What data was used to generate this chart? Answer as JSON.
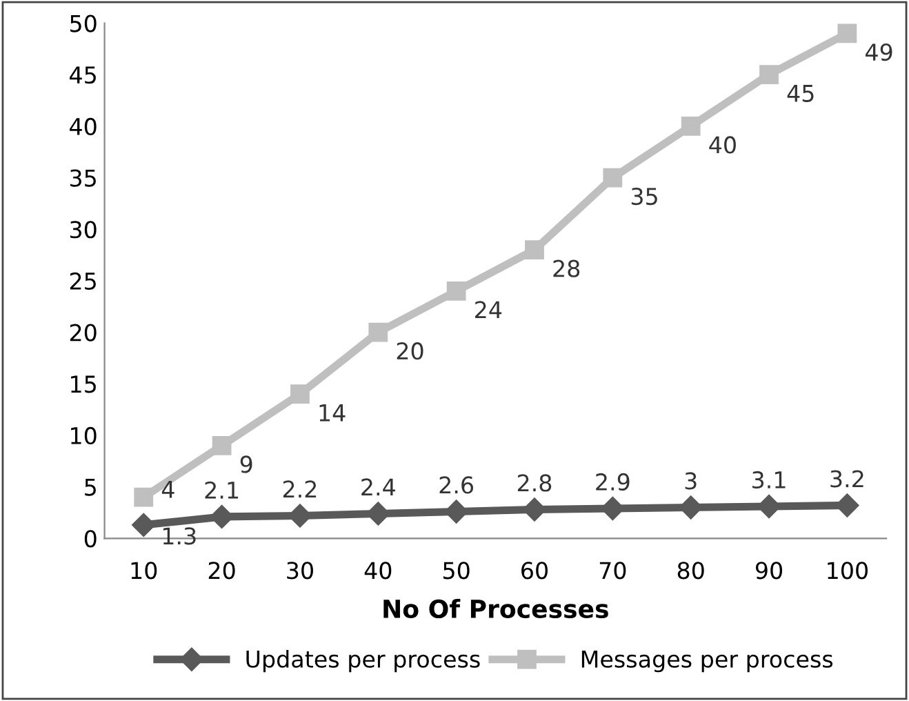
{
  "chart_data": {
    "type": "line",
    "xlabel": "No Of Processes",
    "categories": [
      "10",
      "20",
      "30",
      "40",
      "50",
      "60",
      "70",
      "80",
      "90",
      "100"
    ],
    "series": [
      {
        "name": "Updates per process",
        "color": "#595959",
        "marker": "diamond",
        "values": [
          1.3,
          2.1,
          2.2,
          2.4,
          2.6,
          2.8,
          2.9,
          3,
          3.1,
          3.2
        ]
      },
      {
        "name": "Messages per process",
        "color": "#bfbfbf",
        "marker": "square",
        "values": [
          4,
          9,
          14,
          20,
          24,
          28,
          35,
          40,
          45,
          49
        ]
      }
    ],
    "ylim": [
      0,
      50
    ],
    "yticks": [
      0,
      5,
      10,
      15,
      20,
      25,
      30,
      35,
      40,
      45,
      50
    ],
    "grid": false,
    "legend": "bottom",
    "data_labels": true,
    "line_style": "solid"
  }
}
